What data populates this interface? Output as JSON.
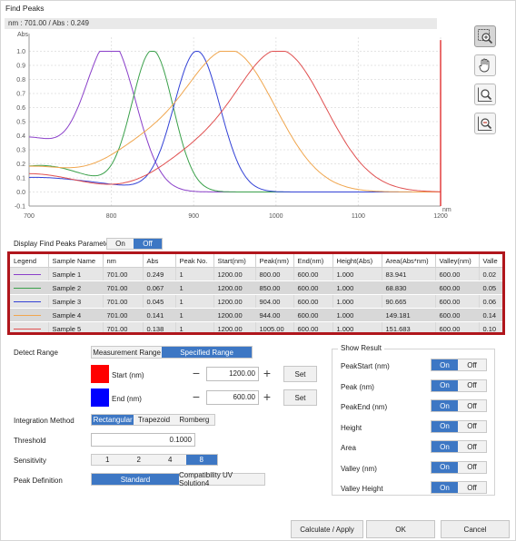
{
  "window": {
    "title": "Find Peaks"
  },
  "readout": "nm : 701.00  /  Abs : 0.249",
  "chart_data": {
    "type": "line",
    "ylabel": "Abs",
    "xlabel": "nm",
    "xlim": [
      700,
      1200
    ],
    "ylim": [
      -0.1,
      1.1
    ],
    "x_ticks": [
      "700",
      "800",
      "900",
      "1000",
      "1100",
      "1200"
    ],
    "y_ticks": [
      "-0.1",
      "0.0",
      "0.1",
      "0.2",
      "0.3",
      "0.4",
      "0.5",
      "0.6",
      "0.7",
      "0.8",
      "0.9",
      "1.0"
    ],
    "cursor_x": 1200,
    "grid": true,
    "series": [
      {
        "color": "#8a3fc9",
        "peak": 800,
        "width": 30,
        "baseline": 0.27,
        "shoulder": 0.12
      },
      {
        "color": "#3aa04a",
        "peak": 850,
        "width": 25,
        "baseline": 0.15,
        "shoulder": 0.05
      },
      {
        "color": "#3342d6",
        "peak": 904,
        "width": 28,
        "baseline": 0.1,
        "shoulder": 0.03
      },
      {
        "color": "#f0a64e",
        "peak": 944,
        "width": 55,
        "baseline": 0.18,
        "shoulder": 0.25
      },
      {
        "color": "#e05050",
        "peak": 1005,
        "width": 55,
        "baseline": 0.13,
        "shoulder": 0.2
      }
    ]
  },
  "display_params": {
    "label": "Display Find Peaks Parameter",
    "on": "On",
    "off": "Off"
  },
  "table": {
    "headers": [
      "Legend",
      "Sample Name",
      "nm",
      "Abs",
      "Peak No.",
      "Start(nm)",
      "Peak(nm)",
      "End(nm)",
      "Height(Abs)",
      "Area(Abs*nm)",
      "Valley(nm)",
      "Valle"
    ],
    "rows": [
      {
        "color": "#8a3fc9",
        "cells": [
          "Sample 1",
          "701.00",
          "0.249",
          "1",
          "1200.00",
          "800.00",
          "600.00",
          "1.000",
          "83.941",
          "600.00",
          "0.02"
        ]
      },
      {
        "color": "#3aa04a",
        "cells": [
          "Sample 2",
          "701.00",
          "0.067",
          "1",
          "1200.00",
          "850.00",
          "600.00",
          "1.000",
          "68.830",
          "600.00",
          "0.05"
        ]
      },
      {
        "color": "#3342d6",
        "cells": [
          "Sample 3",
          "701.00",
          "0.045",
          "1",
          "1200.00",
          "904.00",
          "600.00",
          "1.000",
          "90.665",
          "600.00",
          "0.06"
        ]
      },
      {
        "color": "#f0a64e",
        "cells": [
          "Sample 4",
          "701.00",
          "0.141",
          "1",
          "1200.00",
          "944.00",
          "600.00",
          "1.000",
          "149.181",
          "600.00",
          "0.14"
        ]
      },
      {
        "color": "#e05050",
        "cells": [
          "Sample 5",
          "701.00",
          "0.138",
          "1",
          "1200.00",
          "1005.00",
          "600.00",
          "1.000",
          "151.683",
          "600.00",
          "0.10"
        ]
      }
    ]
  },
  "detect_range": {
    "label": "Detect Range",
    "options": [
      "Measurement Range",
      "Specified Range"
    ],
    "selected": 1
  },
  "start": {
    "label": "Start (nm)",
    "value": "1200.00",
    "color": "#ff0000",
    "set": "Set"
  },
  "end": {
    "label": "End (nm)",
    "value": "600.00",
    "color": "#0000ff",
    "set": "Set"
  },
  "minus": "−",
  "plus": "+",
  "integration": {
    "label": "Integration Method",
    "options": [
      "Rectangular",
      "Trapezoid",
      "Romberg"
    ],
    "selected": 0
  },
  "threshold": {
    "label": "Threshold",
    "value": "0.1000"
  },
  "sensitivity": {
    "label": "Sensitivity",
    "options": [
      "1",
      "2",
      "4",
      "8"
    ],
    "selected": 3
  },
  "peak_definition": {
    "label": "Peak Definition",
    "options": [
      "Standard",
      "Compatibility UV Solution4"
    ],
    "selected": 0
  },
  "show_result": {
    "title": "Show Result",
    "on": "On",
    "off": "Off",
    "items": [
      "PeakStart (nm)",
      "Peak (nm)",
      "PeakEnd (nm)",
      "Height",
      "Area",
      "Valley (nm)",
      "Valley Height"
    ]
  },
  "buttons": {
    "calculate": "Calculate / Apply",
    "ok": "OK",
    "cancel": "Cancel"
  },
  "icons": [
    "zoom-select-icon",
    "pan-hand-icon",
    "zoom-in-icon",
    "zoom-reset-icon"
  ]
}
